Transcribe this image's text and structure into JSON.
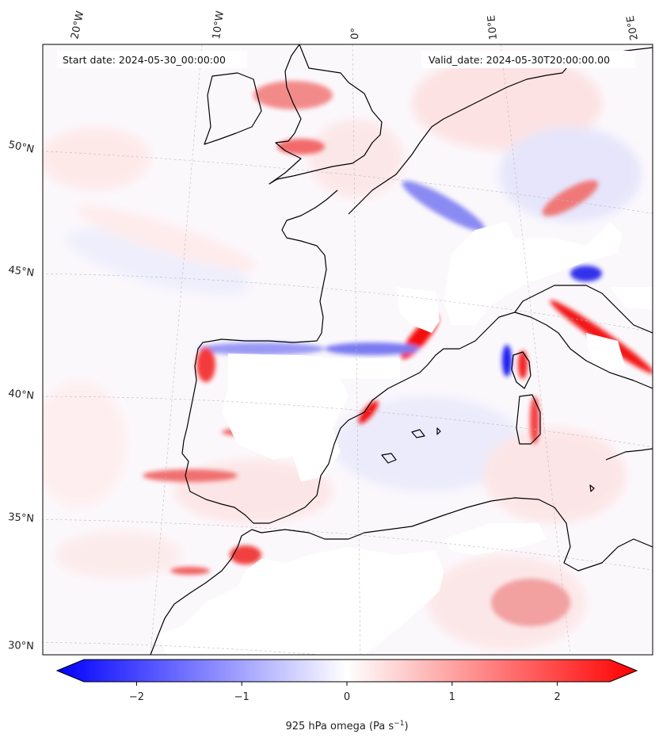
{
  "header": {
    "start_date": "Start date: 2024-05-30_00:00:00",
    "valid_date": "Valid_date: 2024-05-30T20:00:00.00"
  },
  "graticule": {
    "lon_labels": [
      "20°W",
      "10°W",
      "0°",
      "10°E",
      "20°E"
    ],
    "lat_labels": [
      "50°N",
      "45°N",
      "40°N",
      "35°N",
      "30°N"
    ]
  },
  "colorbar": {
    "ticks": [
      "−2",
      "−1",
      "0",
      "1",
      "2"
    ],
    "vmin": -2.5,
    "vmax": 2.5,
    "label_main": "925 hPa omega (Pa s",
    "label_exp": "−1",
    "label_close": ")",
    "colors": {
      "low": "#0000ff",
      "mid": "#ffffff",
      "high": "#ff0000"
    }
  },
  "map": {
    "projection": "lambert-conformal",
    "variable": "925 hPa omega",
    "colormap": "bwr",
    "masked_color": "#ffffff",
    "coastline_color": "#000000"
  }
}
